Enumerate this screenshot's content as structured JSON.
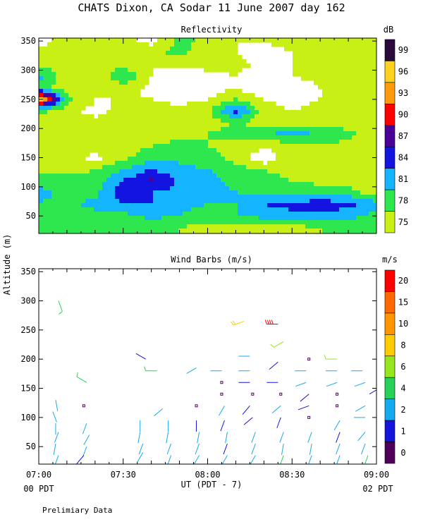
{
  "figure": {
    "title": "CHATS Dixon, CA  Sodar  11 June 2007  day 162",
    "ylabel": "Altitude (m)",
    "xlabel": "UT  (PDT - 7)",
    "left_footer": "00 PDT",
    "right_footer": "02 PDT",
    "note": "Prelimiary Data"
  },
  "chart_data": [
    {
      "type": "heatmap",
      "title": "Reflectivity",
      "units": "dB",
      "x_ticks": [
        "07:00",
        "07:30",
        "08:00",
        "08:30",
        "09:00"
      ],
      "x_range_minutes": [
        0,
        120
      ],
      "y_ticks": [
        50,
        100,
        150,
        200,
        250,
        300,
        350
      ],
      "ylim": [
        20,
        355
      ],
      "grid": false,
      "colorbar": {
        "labels": [
          "99",
          "96",
          "93",
          "90",
          "87",
          "84",
          "81",
          "78",
          "75"
        ],
        "colors": [
          "#2a0a3a",
          "#ffd21f",
          "#ff9a0a",
          "#ff0000",
          "#4b0098",
          "#1414e0",
          "#14b4ff",
          "#2ee64e",
          "#c8f014"
        ]
      },
      "levels": [
        {
          "value": 75,
          "color": "#c8f014"
        },
        {
          "value": 78,
          "color": "#2ee64e"
        },
        {
          "value": 81,
          "color": "#14b4ff"
        },
        {
          "value": 84,
          "color": "#1414e0"
        },
        {
          "value": 87,
          "color": "#4b0098"
        },
        {
          "value": 90,
          "color": "#ff0000"
        },
        {
          "value": 93,
          "color": "#ff9a0a"
        },
        {
          "value": 96,
          "color": "#ffd21f"
        },
        {
          "value": 99,
          "color": "#2a0a3a"
        }
      ],
      "x_grid_minutes": [
        0,
        10,
        20,
        30,
        40,
        50,
        60,
        70,
        80,
        90,
        100,
        110,
        120
      ],
      "y_grid_m": [
        30,
        50,
        70,
        90,
        110,
        130,
        150,
        170,
        190,
        210,
        230,
        250,
        270,
        290,
        310,
        330,
        350
      ],
      "grid_values": [
        [
          79,
          79,
          78,
          78,
          78,
          78,
          77,
          77,
          77,
          77,
          78,
          79,
          79
        ],
        [
          79,
          80,
          80,
          80,
          82,
          81,
          79,
          81,
          82,
          83,
          83,
          82,
          80
        ],
        [
          81,
          80,
          82,
          84,
          84,
          82,
          81,
          81,
          84,
          85,
          86,
          85,
          82
        ],
        [
          82,
          80,
          80,
          86,
          84,
          83,
          82,
          81,
          81,
          80,
          80,
          79,
          77
        ],
        [
          80,
          79,
          79,
          84,
          88,
          83,
          82,
          80,
          79,
          78,
          77,
          77,
          76
        ],
        [
          76,
          77,
          78,
          81,
          84,
          82,
          81,
          79,
          78,
          77,
          76,
          76,
          75
        ],
        [
          75,
          76,
          74,
          77,
          80,
          80,
          79,
          77,
          72,
          78,
          78,
          77,
          75
        ],
        [
          76,
          77,
          77,
          77,
          78,
          79,
          78,
          77,
          76,
          76,
          77,
          77,
          76
        ],
        [
          77,
          77,
          76,
          76,
          76,
          77,
          78,
          79,
          81,
          82,
          81,
          79,
          76
        ],
        [
          77,
          76,
          76,
          76,
          75,
          76,
          77,
          78,
          77,
          77,
          77,
          76,
          76
        ],
        [
          79,
          76,
          74,
          76,
          76,
          76,
          77,
          86,
          76,
          75,
          76,
          76,
          76
        ],
        [
          100,
          79,
          75,
          75,
          75,
          74,
          75,
          78,
          75,
          74,
          75,
          75,
          76
        ],
        [
          79,
          76,
          75,
          77,
          74,
          73,
          73,
          75,
          72,
          73,
          75,
          76,
          76
        ],
        [
          82,
          76,
          75,
          81,
          75,
          73,
          74,
          75,
          73,
          75,
          76,
          77,
          78
        ],
        [
          77,
          76,
          75,
          77,
          75,
          76,
          76,
          76,
          74,
          75,
          76,
          77,
          77
        ],
        [
          76,
          75,
          77,
          75,
          77,
          79,
          76,
          75,
          74,
          75,
          76,
          77,
          78
        ],
        [
          74,
          76,
          78,
          76,
          74,
          79,
          77,
          75,
          75,
          76,
          78,
          77,
          77
        ]
      ]
    },
    {
      "type": "scatter",
      "title": "Wind Barbs (m/s)",
      "units": "m/s",
      "x_ticks": [
        "07:00",
        "07:30",
        "08:00",
        "08:30",
        "09:00"
      ],
      "x_range_minutes": [
        0,
        120
      ],
      "y_ticks": [
        50,
        100,
        150,
        200,
        250,
        300,
        350
      ],
      "ylim": [
        20,
        355
      ],
      "colorbar": {
        "labels": [
          "20",
          "15",
          "10",
          "8",
          "6",
          "4",
          "2",
          "1",
          "0"
        ],
        "colors": [
          "#ff0000",
          "#ff6a00",
          "#ff9600",
          "#ffcc00",
          "#96e61e",
          "#28d25a",
          "#14aaf0",
          "#1414dc",
          "#50005a"
        ]
      },
      "barbs": [
        {
          "t": 7,
          "z": 300,
          "s": 4,
          "d": 160
        },
        {
          "t": 6,
          "z": 130,
          "s": 2,
          "d": 170
        },
        {
          "t": 5,
          "z": 110,
          "s": 2,
          "d": 160
        },
        {
          "t": 6,
          "z": 90,
          "s": 2,
          "d": 180
        },
        {
          "t": 7,
          "z": 75,
          "s": 2,
          "d": 200
        },
        {
          "t": 6,
          "z": 55,
          "s": 2,
          "d": 190
        },
        {
          "t": 7,
          "z": 35,
          "s": 2,
          "d": 200
        },
        {
          "t": 16,
          "z": 120,
          "s": 1,
          "d": 0
        },
        {
          "t": 17,
          "z": 90,
          "s": 2,
          "d": 200
        },
        {
          "t": 18,
          "z": 70,
          "s": 2,
          "d": 210
        },
        {
          "t": 17,
          "z": 50,
          "s": 2,
          "d": 200
        },
        {
          "t": 16,
          "z": 35,
          "s": 1,
          "d": 220
        },
        {
          "t": 17,
          "z": 160,
          "s": 5,
          "d": 300
        },
        {
          "t": 36,
          "z": 95,
          "s": 2,
          "d": 180
        },
        {
          "t": 36,
          "z": 75,
          "s": 2,
          "d": 190
        },
        {
          "t": 37,
          "z": 55,
          "s": 2,
          "d": 200
        },
        {
          "t": 37,
          "z": 40,
          "s": 2,
          "d": 210
        },
        {
          "t": 38,
          "z": 200,
          "s": 1,
          "d": 300
        },
        {
          "t": 42,
          "z": 180,
          "s": 4,
          "d": 270
        },
        {
          "t": 44,
          "z": 115,
          "s": 2,
          "d": 230
        },
        {
          "t": 46,
          "z": 95,
          "s": 2,
          "d": 180
        },
        {
          "t": 46,
          "z": 75,
          "s": 2,
          "d": 190
        },
        {
          "t": 47,
          "z": 55,
          "s": 2,
          "d": 200
        },
        {
          "t": 47,
          "z": 35,
          "s": 2,
          "d": 200
        },
        {
          "t": 56,
          "z": 185,
          "s": 2,
          "d": 240
        },
        {
          "t": 56,
          "z": 120,
          "s": 1,
          "d": 0
        },
        {
          "t": 56,
          "z": 95,
          "s": 1,
          "d": 180
        },
        {
          "t": 57,
          "z": 75,
          "s": 2,
          "d": 190
        },
        {
          "t": 57,
          "z": 55,
          "s": 2,
          "d": 200
        },
        {
          "t": 57,
          "z": 35,
          "s": 2,
          "d": 210
        },
        {
          "t": 65,
          "z": 180,
          "s": 2,
          "d": 270
        },
        {
          "t": 65,
          "z": 160,
          "s": 1,
          "d": 0
        },
        {
          "t": 65,
          "z": 140,
          "s": 1,
          "d": 0
        },
        {
          "t": 66,
          "z": 120,
          "s": 2,
          "d": 210
        },
        {
          "t": 66,
          "z": 95,
          "s": 1,
          "d": 200
        },
        {
          "t": 67,
          "z": 75,
          "s": 2,
          "d": 190
        },
        {
          "t": 67,
          "z": 55,
          "s": 1,
          "d": 200
        },
        {
          "t": 67,
          "z": 35,
          "s": 2,
          "d": 210
        },
        {
          "t": 73,
          "z": 265,
          "s": 8,
          "d": 250
        },
        {
          "t": 75,
          "z": 205,
          "s": 2,
          "d": 270
        },
        {
          "t": 75,
          "z": 180,
          "s": 2,
          "d": 270
        },
        {
          "t": 75,
          "z": 160,
          "s": 1,
          "d": 270
        },
        {
          "t": 76,
          "z": 140,
          "s": 1,
          "d": 0
        },
        {
          "t": 75,
          "z": 120,
          "s": 1,
          "d": 220
        },
        {
          "t": 76,
          "z": 100,
          "s": 1,
          "d": 230
        },
        {
          "t": 77,
          "z": 75,
          "s": 2,
          "d": 200
        },
        {
          "t": 77,
          "z": 55,
          "s": 2,
          "d": 200
        },
        {
          "t": 77,
          "z": 35,
          "s": 2,
          "d": 210
        },
        {
          "t": 85,
          "z": 260,
          "s": 20,
          "d": 270
        },
        {
          "t": 87,
          "z": 230,
          "s": 6,
          "d": 240
        },
        {
          "t": 85,
          "z": 195,
          "s": 1,
          "d": 230
        },
        {
          "t": 85,
          "z": 160,
          "s": 1,
          "d": 270
        },
        {
          "t": 86,
          "z": 140,
          "s": 1,
          "d": 0
        },
        {
          "t": 86,
          "z": 120,
          "s": 2,
          "d": 230
        },
        {
          "t": 86,
          "z": 100,
          "s": 1,
          "d": 200
        },
        {
          "t": 87,
          "z": 75,
          "s": 2,
          "d": 200
        },
        {
          "t": 87,
          "z": 55,
          "s": 2,
          "d": 190
        },
        {
          "t": 87,
          "z": 35,
          "s": 4,
          "d": 200
        },
        {
          "t": 96,
          "z": 200,
          "s": 1,
          "d": 0
        },
        {
          "t": 95,
          "z": 180,
          "s": 2,
          "d": 270
        },
        {
          "t": 95,
          "z": 160,
          "s": 2,
          "d": 250
        },
        {
          "t": 96,
          "z": 140,
          "s": 1,
          "d": 230
        },
        {
          "t": 96,
          "z": 120,
          "s": 1,
          "d": 250
        },
        {
          "t": 96,
          "z": 100,
          "s": 1,
          "d": 0
        },
        {
          "t": 97,
          "z": 75,
          "s": 2,
          "d": 200
        },
        {
          "t": 97,
          "z": 55,
          "s": 2,
          "d": 190
        },
        {
          "t": 97,
          "z": 35,
          "s": 2,
          "d": 200
        },
        {
          "t": 106,
          "z": 200,
          "s": 6,
          "d": 270
        },
        {
          "t": 106,
          "z": 180,
          "s": 2,
          "d": 270
        },
        {
          "t": 106,
          "z": 160,
          "s": 2,
          "d": 250
        },
        {
          "t": 106,
          "z": 140,
          "s": 1,
          "d": 0
        },
        {
          "t": 106,
          "z": 120,
          "s": 1,
          "d": 0
        },
        {
          "t": 107,
          "z": 95,
          "s": 2,
          "d": 210
        },
        {
          "t": 107,
          "z": 75,
          "s": 1,
          "d": 200
        },
        {
          "t": 107,
          "z": 55,
          "s": 2,
          "d": 200
        },
        {
          "t": 107,
          "z": 35,
          "s": 2,
          "d": 200
        },
        {
          "t": 115,
          "z": 180,
          "s": 2,
          "d": 270
        },
        {
          "t": 116,
          "z": 160,
          "s": 2,
          "d": 250
        },
        {
          "t": 116,
          "z": 120,
          "s": 2,
          "d": 240
        },
        {
          "t": 116,
          "z": 100,
          "s": 2,
          "d": 270
        },
        {
          "t": 116,
          "z": 75,
          "s": 2,
          "d": 220
        },
        {
          "t": 116,
          "z": 55,
          "s": 2,
          "d": 200
        },
        {
          "t": 117,
          "z": 35,
          "s": 4,
          "d": 200
        },
        {
          "t": 121,
          "z": 150,
          "s": 1,
          "d": 240
        }
      ]
    }
  ]
}
